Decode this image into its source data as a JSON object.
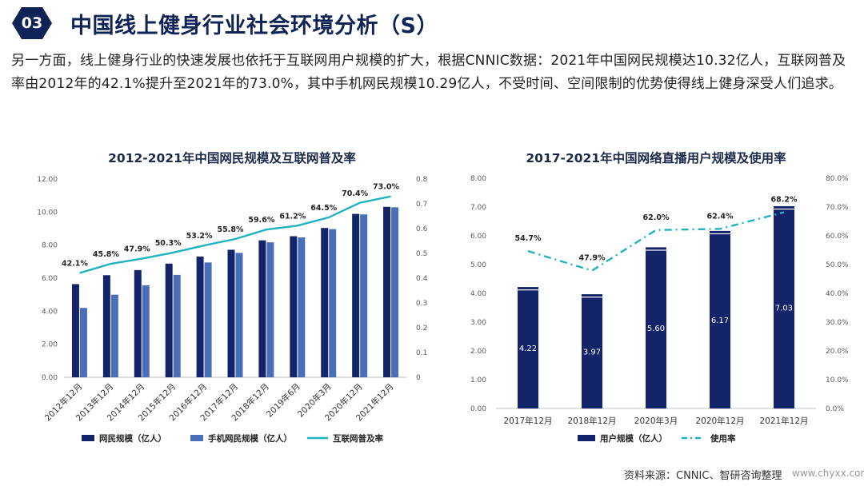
{
  "header": {
    "badge": "03",
    "title": "中国线上健身行业社会环境分析（S）"
  },
  "intro_text": "另一方面，线上健身行业的快速发展也依托于互联网用户规模的扩大，根据CNNIC数据：2021年中国网民规模达10.32亿人，互联网普及率由2012年的42.1%提升至2021年的73.0%，其中手机网民规模10.29亿人，不受时间、空间限制的优势使得线上健身深受人们追求。",
  "footer": {
    "source": "资料来源：CNNIC、智研咨询整理",
    "site": "www.chyxx.com"
  },
  "colors": {
    "navy": "#0f2357",
    "bar_dark": "#13246b",
    "bar_light": "#4a6fb8",
    "line": "#1fb3c2"
  },
  "chart_data": [
    {
      "type": "bar",
      "title": "2012-2021年中国网民规模及互联网普及率",
      "categories": [
        "2012年12月",
        "2013年12月",
        "2014年12月",
        "2015年12月",
        "2016年12月",
        "2017年12月",
        "2018年12月",
        "2019年6月",
        "2020年3月",
        "2020年12月",
        "2021年12月"
      ],
      "series": [
        {
          "name": "网民规模（亿人）",
          "kind": "bar",
          "axis": "left",
          "values": [
            5.64,
            6.18,
            6.49,
            6.88,
            7.31,
            7.72,
            8.29,
            8.54,
            9.04,
            9.89,
            10.32
          ]
        },
        {
          "name": "手机网民规模（亿人）",
          "kind": "bar",
          "axis": "left",
          "values": [
            4.2,
            5.0,
            5.57,
            6.2,
            6.95,
            7.53,
            8.17,
            8.47,
            8.97,
            9.86,
            10.29
          ]
        },
        {
          "name": "互联网普及率",
          "kind": "line",
          "axis": "right",
          "values": [
            0.421,
            0.458,
            0.479,
            0.503,
            0.532,
            0.558,
            0.596,
            0.612,
            0.645,
            0.704,
            0.73
          ],
          "labels": [
            "42.1%",
            "45.8%",
            "47.9%",
            "50.3%",
            "53.2%",
            "55.8%",
            "59.6%",
            "61.2%",
            "64.5%",
            "70.4%",
            "73.0%"
          ]
        }
      ],
      "ylim": [
        0,
        12
      ],
      "y_ticks": [
        "0.00",
        "2.00",
        "4.00",
        "6.00",
        "8.00",
        "10.00",
        "12.00"
      ],
      "y2lim": [
        0,
        0.8
      ],
      "y2_ticks": [
        "0",
        "0.1",
        "0.2",
        "0.3",
        "0.4",
        "0.5",
        "0.6",
        "0.7",
        "0.8"
      ],
      "legend": [
        "网民规模（亿人）",
        "手机网民规模（亿人）",
        "互联网普及率"
      ]
    },
    {
      "type": "bar",
      "title": "2017-2021年中国网络直播用户规模及使用率",
      "categories": [
        "2017年12月",
        "2018年12月",
        "2020年3月",
        "2020年12月",
        "2021年12月"
      ],
      "series": [
        {
          "name": "用户规模（亿人）",
          "kind": "bar",
          "axis": "left",
          "values": [
            4.22,
            3.97,
            5.6,
            6.17,
            7.03
          ],
          "labels": [
            "4.22",
            "3.97",
            "5.60",
            "6.17",
            "7.03"
          ]
        },
        {
          "name": "使用率",
          "kind": "line",
          "axis": "right",
          "values": [
            54.7,
            47.9,
            62.0,
            62.4,
            68.2
          ],
          "labels": [
            "54.7%",
            "47.9%",
            "62.0%",
            "62.4%",
            "68.2%"
          ]
        }
      ],
      "ylim": [
        0,
        8
      ],
      "y_ticks": [
        "0.00",
        "1.00",
        "2.00",
        "3.00",
        "4.00",
        "5.00",
        "6.00",
        "7.00",
        "8.00"
      ],
      "y2lim": [
        0,
        80
      ],
      "y2_ticks": [
        "0.0%",
        "10.0%",
        "20.0%",
        "30.0%",
        "40.0%",
        "50.0%",
        "60.0%",
        "70.0%",
        "80.0%"
      ],
      "legend": [
        "用户规模（亿人）",
        "使用率"
      ]
    }
  ]
}
